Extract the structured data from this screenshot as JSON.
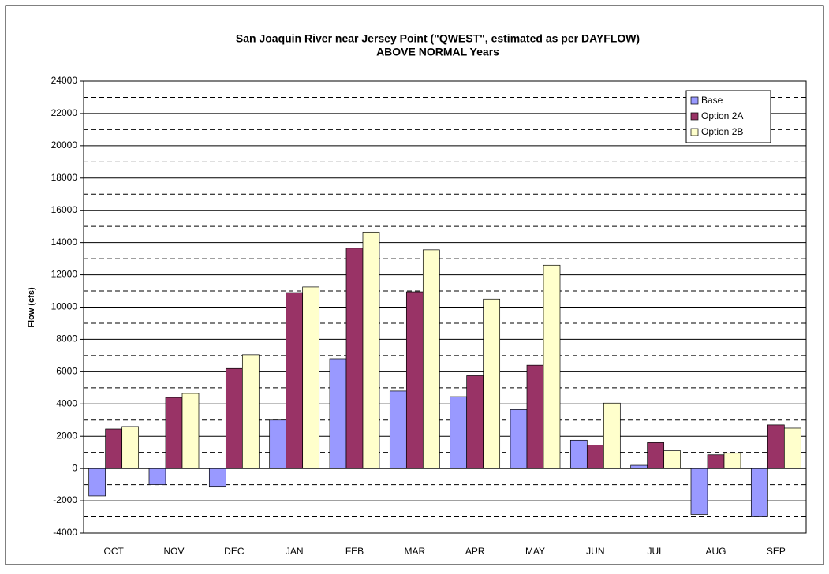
{
  "chart_data": {
    "type": "bar",
    "title": "San Joaquin River near Jersey Point (\"QWEST\", estimated as per DAYFLOW)",
    "subtitle": "ABOVE NORMAL Years",
    "ylabel": "Flow (cfs)",
    "categories": [
      "OCT",
      "NOV",
      "DEC",
      "JAN",
      "FEB",
      "MAR",
      "APR",
      "MAY",
      "JUN",
      "JUL",
      "AUG",
      "SEP"
    ],
    "series": [
      {
        "name": "Base",
        "color": "#9999ff",
        "values": [
          -1700,
          -1000,
          -1150,
          3000,
          6800,
          4800,
          4450,
          3650,
          1750,
          200,
          -2850,
          -3000
        ]
      },
      {
        "name": "Option 2A",
        "color": "#993366",
        "values": [
          2450,
          4400,
          6200,
          10900,
          13650,
          10950,
          5750,
          6400,
          1450,
          1600,
          850,
          2700
        ]
      },
      {
        "name": "Option 2B",
        "color": "#ffffcc",
        "values": [
          2600,
          4650,
          7050,
          11250,
          14650,
          13550,
          10500,
          12600,
          4050,
          1100,
          950,
          2500
        ]
      }
    ],
    "ylim": [
      -4000,
      24000
    ],
    "yticks": [
      -4000,
      -2000,
      0,
      2000,
      4000,
      6000,
      8000,
      10000,
      12000,
      14000,
      16000,
      18000,
      20000,
      22000,
      24000
    ],
    "minor_yticks": [
      -3000,
      -1000,
      1000,
      3000,
      5000,
      7000,
      9000,
      11000,
      13000,
      15000,
      17000,
      19000,
      21000,
      23000
    ],
    "grid": true,
    "legend": "upper right"
  }
}
